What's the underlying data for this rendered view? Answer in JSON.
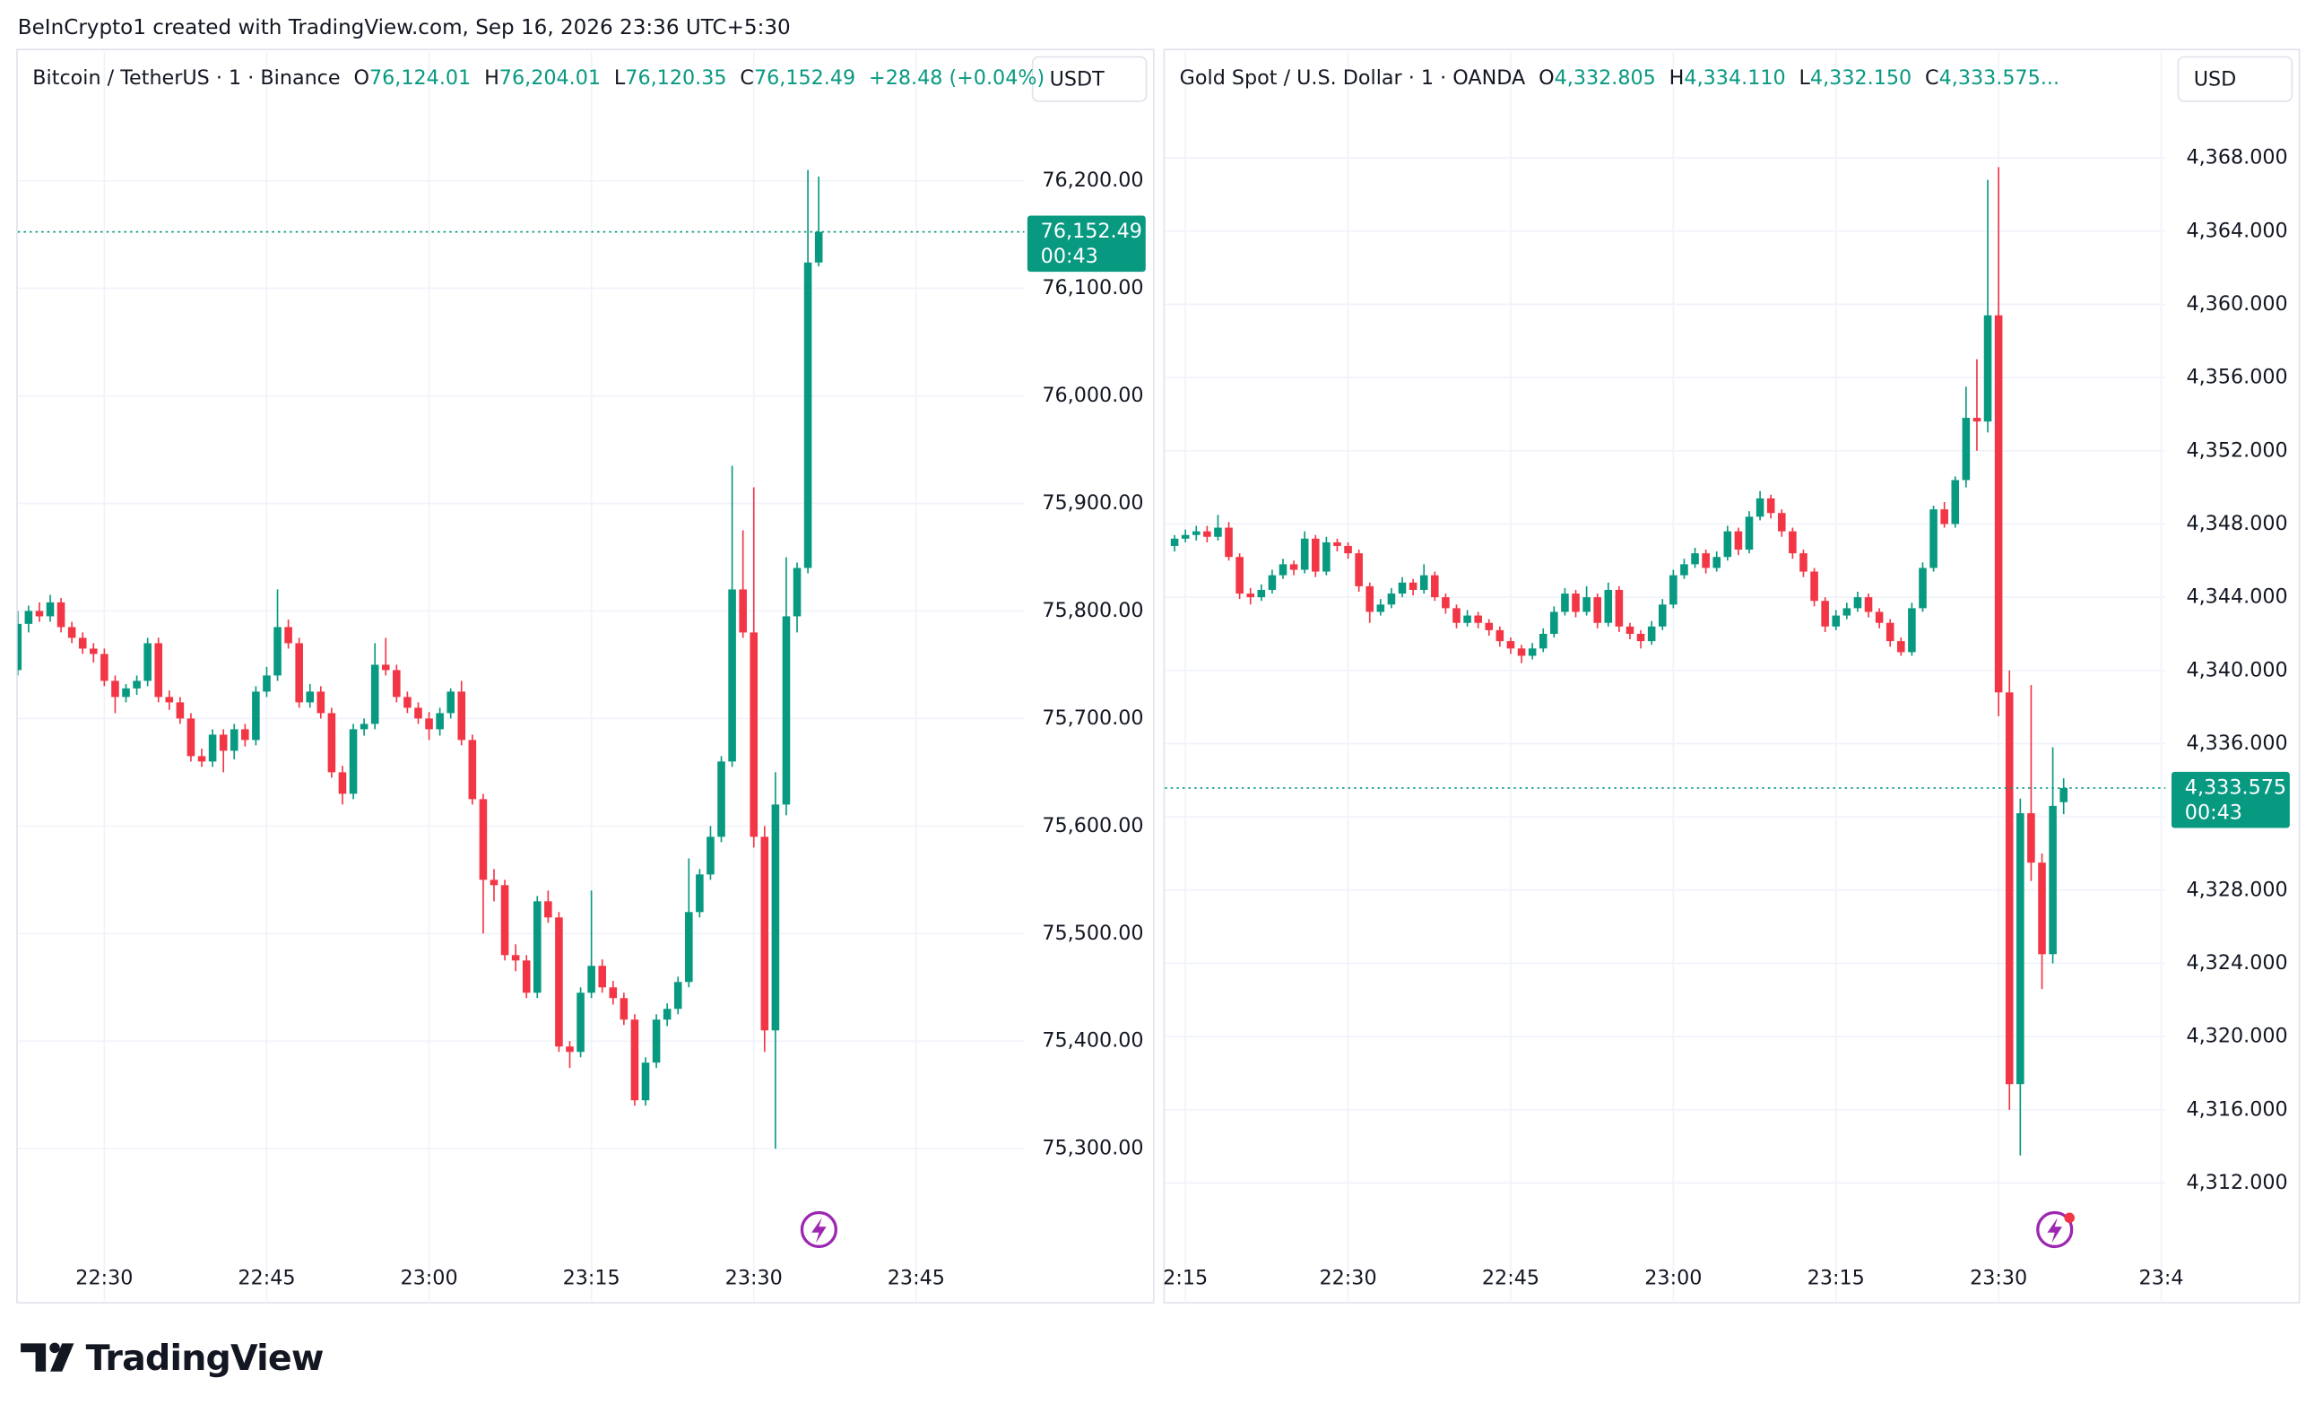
{
  "header": {
    "attribution": "BeInCrypto1 created with TradingView.com, Sep 16, 2026 23:36 UTC+5:30"
  },
  "footer": {
    "logo": "TradingView"
  },
  "chart_data": [
    {
      "type": "candlestick",
      "title": "Bitcoin / TetherUS · 1 · Binance",
      "legend": [
        {
          "key": "O",
          "value": "76,124.01"
        },
        {
          "key": "H",
          "value": "76,204.01"
        },
        {
          "key": "L",
          "value": "76,120.35"
        },
        {
          "key": "C",
          "value": "76,152.49"
        }
      ],
      "change": "+28.48 (+0.04%)",
      "currency": "USDT",
      "up_color": "#089981",
      "down_color": "#f23645",
      "grid": true,
      "xlim": [
        1342,
        1435
      ],
      "xticks": [
        {
          "value": 1350,
          "label": "22:30"
        },
        {
          "value": 1365,
          "label": "22:45"
        },
        {
          "value": 1380,
          "label": "23:00"
        },
        {
          "value": 1395,
          "label": "23:15"
        },
        {
          "value": 1410,
          "label": "23:30"
        },
        {
          "value": 1425,
          "label": "23:45"
        }
      ],
      "ylim": [
        75200,
        76320
      ],
      "yticks": [
        {
          "value": 75300,
          "label": "75,300.00"
        },
        {
          "value": 75400,
          "label": "75,400.00"
        },
        {
          "value": 75500,
          "label": "75,500.00"
        },
        {
          "value": 75600,
          "label": "75,600.00"
        },
        {
          "value": 75700,
          "label": "75,700.00"
        },
        {
          "value": 75800,
          "label": "75,800.00"
        },
        {
          "value": 75900,
          "label": "75,900.00"
        },
        {
          "value": 76000,
          "label": "76,000.00"
        },
        {
          "value": 76100,
          "label": "76,100.00"
        },
        {
          "value": 76200,
          "label": "76,200.00"
        }
      ],
      "last_price": {
        "value": 76152.49,
        "label": "76,152.49"
      },
      "countdown": "00:43",
      "x": [
        1342,
        1343,
        1344,
        1345,
        1346,
        1347,
        1348,
        1349,
        1350,
        1351,
        1352,
        1353,
        1354,
        1355,
        1356,
        1357,
        1358,
        1359,
        1360,
        1361,
        1362,
        1363,
        1364,
        1365,
        1366,
        1367,
        1368,
        1369,
        1370,
        1371,
        1372,
        1373,
        1374,
        1375,
        1376,
        1377,
        1378,
        1379,
        1380,
        1381,
        1382,
        1383,
        1384,
        1385,
        1386,
        1387,
        1388,
        1389,
        1390,
        1391,
        1392,
        1393,
        1394,
        1395,
        1396,
        1397,
        1398,
        1399,
        1400,
        1401,
        1402,
        1403,
        1404,
        1405,
        1406,
        1407,
        1408,
        1409,
        1410,
        1411,
        1412,
        1413,
        1414,
        1415,
        1416
      ],
      "open": [
        75745,
        75788,
        75800,
        75795,
        75808,
        75785,
        75775,
        75765,
        75760,
        75735,
        75720,
        75728,
        75735,
        75770,
        75720,
        75715,
        75700,
        75665,
        75660,
        75685,
        75670,
        75690,
        75680,
        75725,
        75740,
        75785,
        75770,
        75715,
        75725,
        75705,
        75650,
        75630,
        75690,
        75695,
        75750,
        75745,
        75720,
        75710,
        75700,
        75690,
        75705,
        75725,
        75680,
        75625,
        75550,
        75545,
        75480,
        75475,
        75445,
        75530,
        75515,
        75395,
        75390,
        75445,
        75470,
        75450,
        75440,
        75420,
        75345,
        75380,
        75420,
        75430,
        75455,
        75520,
        75555,
        75590,
        75660,
        75820,
        75780,
        75590,
        75410,
        75620,
        75795,
        75840,
        76124.01
      ],
      "high": [
        75800,
        75805,
        75808,
        75815,
        75812,
        75790,
        75780,
        75770,
        75765,
        75740,
        75732,
        75740,
        75775,
        75775,
        75726,
        75720,
        75705,
        75672,
        75690,
        75690,
        75695,
        75695,
        75730,
        75748,
        75820,
        75792,
        75775,
        75732,
        75730,
        75710,
        75656,
        75695,
        75700,
        75770,
        75775,
        75750,
        75725,
        75715,
        75706,
        75710,
        75728,
        75735,
        75685,
        75630,
        75560,
        75550,
        75490,
        75480,
        75535,
        75540,
        75520,
        75400,
        75450,
        75540,
        75476,
        75456,
        75445,
        75425,
        75385,
        75425,
        75435,
        75460,
        75570,
        75560,
        75600,
        75665,
        75935,
        75875,
        75915,
        75600,
        75650,
        75850,
        75845,
        76210,
        76204.01
      ],
      "low": [
        75740,
        75780,
        75790,
        75790,
        75780,
        75770,
        75760,
        75752,
        75730,
        75705,
        75715,
        75722,
        75730,
        75715,
        75708,
        75695,
        75660,
        75655,
        75655,
        75650,
        75662,
        75674,
        75675,
        75720,
        75735,
        75765,
        75710,
        75710,
        75700,
        75645,
        75620,
        75625,
        75684,
        75690,
        75740,
        75715,
        75705,
        75695,
        75680,
        75684,
        75700,
        75675,
        75620,
        75500,
        75530,
        75475,
        75465,
        75440,
        75440,
        75510,
        75390,
        75375,
        75385,
        75440,
        75445,
        75434,
        75415,
        75340,
        75340,
        75375,
        75414,
        75425,
        75450,
        75515,
        75550,
        75585,
        75655,
        75775,
        75580,
        75390,
        75300,
        75610,
        75780,
        75835,
        76120.35
      ],
      "close": [
        75788,
        75800,
        75795,
        75808,
        75785,
        75775,
        75765,
        75760,
        75735,
        75720,
        75728,
        75735,
        75770,
        75720,
        75715,
        75700,
        75665,
        75660,
        75685,
        75670,
        75690,
        75680,
        75725,
        75740,
        75785,
        75770,
        75715,
        75725,
        75705,
        75650,
        75630,
        75690,
        75695,
        75750,
        75745,
        75720,
        75710,
        75700,
        75690,
        75705,
        75725,
        75680,
        75625,
        75550,
        75545,
        75480,
        75475,
        75445,
        75530,
        75515,
        75395,
        75390,
        75445,
        75470,
        75450,
        75440,
        75420,
        75345,
        75380,
        75420,
        75430,
        75455,
        75520,
        75555,
        75590,
        75660,
        75820,
        75780,
        75590,
        75410,
        75620,
        75795,
        75840,
        76124,
        76152.49
      ]
    },
    {
      "type": "candlestick",
      "title": "Gold Spot / U.S. Dollar · 1 · OANDA",
      "legend": [
        {
          "key": "O",
          "value": "4,332.805"
        },
        {
          "key": "H",
          "value": "4,334.110"
        },
        {
          "key": "L",
          "value": "4,332.150"
        },
        {
          "key": "C",
          "value": "4,333.575..."
        }
      ],
      "currency": "USD",
      "up_color": "#089981",
      "down_color": "#f23645",
      "grid": true,
      "xlim": [
        1333.1,
        1425.4
      ],
      "xticks": [
        {
          "value": 1335,
          "label": "2:15"
        },
        {
          "value": 1350,
          "label": "22:30"
        },
        {
          "value": 1365,
          "label": "22:45"
        },
        {
          "value": 1380,
          "label": "23:00"
        },
        {
          "value": 1395,
          "label": "23:15"
        },
        {
          "value": 1410,
          "label": "23:30"
        },
        {
          "value": 1425,
          "label": "23:4"
        }
      ],
      "ylim": [
        4308,
        4373.8
      ],
      "yticks": [
        {
          "value": 4312,
          "label": "4,312.000"
        },
        {
          "value": 4316,
          "label": "4,316.000"
        },
        {
          "value": 4320,
          "label": "4,320.000"
        },
        {
          "value": 4324,
          "label": "4,324.000"
        },
        {
          "value": 4328,
          "label": "4,328.000"
        },
        {
          "value": 4332,
          "label": "4,332.000"
        },
        {
          "value": 4336,
          "label": "4,336.000"
        },
        {
          "value": 4340,
          "label": "4,340.000"
        },
        {
          "value": 4344,
          "label": "4,344.000"
        },
        {
          "value": 4348,
          "label": "4,348.000"
        },
        {
          "value": 4352,
          "label": "4,352.000"
        },
        {
          "value": 4356,
          "label": "4,356.000"
        },
        {
          "value": 4360,
          "label": "4,360.000"
        },
        {
          "value": 4364,
          "label": "4,364.000"
        },
        {
          "value": 4368,
          "label": "4,368.000"
        }
      ],
      "last_price": {
        "value": 4333.575,
        "label": "4,333.575"
      },
      "countdown": "00:43",
      "x": [
        1334,
        1335,
        1336,
        1337,
        1338,
        1339,
        1340,
        1341,
        1342,
        1343,
        1344,
        1345,
        1346,
        1347,
        1348,
        1349,
        1350,
        1351,
        1352,
        1353,
        1354,
        1355,
        1356,
        1357,
        1358,
        1359,
        1360,
        1361,
        1362,
        1363,
        1364,
        1365,
        1366,
        1367,
        1368,
        1369,
        1370,
        1371,
        1372,
        1373,
        1374,
        1375,
        1376,
        1377,
        1378,
        1379,
        1380,
        1381,
        1382,
        1383,
        1384,
        1385,
        1386,
        1387,
        1388,
        1389,
        1390,
        1391,
        1392,
        1393,
        1394,
        1395,
        1396,
        1397,
        1398,
        1399,
        1400,
        1401,
        1402,
        1403,
        1404,
        1405,
        1406,
        1407,
        1408,
        1409,
        1410,
        1411,
        1412,
        1413,
        1414,
        1415,
        1416
      ],
      "open": [
        4346.8,
        4347.2,
        4347.4,
        4347.6,
        4347.3,
        4347.8,
        4346.2,
        4344.2,
        4344.0,
        4344.4,
        4345.2,
        4345.8,
        4345.5,
        4347.2,
        4345.4,
        4347.0,
        4346.8,
        4346.4,
        4344.6,
        4343.2,
        4343.6,
        4344.2,
        4344.8,
        4344.4,
        4345.2,
        4344.0,
        4343.4,
        4342.6,
        4343.0,
        4342.6,
        4342.2,
        4341.6,
        4341.2,
        4340.8,
        4341.2,
        4342.0,
        4343.2,
        4344.2,
        4343.2,
        4344.0,
        4342.6,
        4344.4,
        4342.4,
        4342.0,
        4341.6,
        4342.4,
        4343.6,
        4345.2,
        4345.8,
        4346.4,
        4345.6,
        4346.2,
        4347.6,
        4346.6,
        4348.4,
        4349.4,
        4348.6,
        4347.6,
        4346.4,
        4345.4,
        4343.8,
        4342.4,
        4343.0,
        4343.4,
        4344.0,
        4343.2,
        4342.6,
        4341.6,
        4341.0,
        4343.4,
        4345.6,
        4348.8,
        4348.0,
        4350.4,
        4353.8,
        4353.6,
        4359.4,
        4338.8,
        4317.4,
        4332.2,
        4329.5,
        4324.5,
        4332.805
      ],
      "high": [
        4347.4,
        4347.7,
        4347.9,
        4347.9,
        4348.5,
        4348.1,
        4346.4,
        4344.5,
        4344.7,
        4345.5,
        4346.1,
        4346.0,
        4347.6,
        4347.4,
        4347.3,
        4347.2,
        4347.0,
        4346.6,
        4344.8,
        4343.9,
        4344.5,
        4345.1,
        4345.0,
        4345.8,
        4345.4,
        4344.2,
        4343.6,
        4343.3,
        4343.2,
        4342.8,
        4342.4,
        4341.8,
        4341.4,
        4341.5,
        4342.3,
        4343.5,
        4344.5,
        4344.4,
        4344.6,
        4344.2,
        4344.8,
        4344.6,
        4342.6,
        4342.2,
        4342.7,
        4343.9,
        4345.5,
        4346.1,
        4346.7,
        4346.6,
        4346.5,
        4347.9,
        4347.8,
        4348.7,
        4349.8,
        4349.6,
        4348.8,
        4347.8,
        4346.6,
        4345.6,
        4344.0,
        4343.3,
        4343.7,
        4344.3,
        4344.2,
        4343.4,
        4342.8,
        4341.8,
        4343.7,
        4345.9,
        4349.0,
        4349.2,
        4350.6,
        4355.5,
        4357.0,
        4366.8,
        4367.5,
        4340.0,
        4333.0,
        4339.2,
        4330.0,
        4335.8,
        4334.11
      ],
      "low": [
        4346.5,
        4347.0,
        4347.1,
        4347.0,
        4347.1,
        4346.0,
        4343.9,
        4343.6,
        4343.8,
        4344.2,
        4345.0,
        4345.2,
        4345.3,
        4345.1,
        4345.2,
        4346.5,
        4346.1,
        4344.3,
        4342.6,
        4343.0,
        4343.4,
        4344.0,
        4344.1,
        4344.2,
        4343.8,
        4343.1,
        4342.3,
        4342.4,
        4342.3,
        4341.9,
        4341.3,
        4340.9,
        4340.4,
        4340.6,
        4341.0,
        4341.8,
        4343.0,
        4342.9,
        4343.0,
        4342.3,
        4342.4,
        4342.1,
        4341.7,
        4341.2,
        4341.4,
        4342.2,
        4343.4,
        4345.0,
        4345.6,
        4345.3,
        4345.4,
        4346.0,
        4346.3,
        4346.4,
        4348.2,
        4348.3,
        4347.3,
        4346.1,
        4345.1,
        4343.5,
        4342.1,
        4342.2,
        4342.8,
        4343.2,
        4342.9,
        4342.3,
        4341.3,
        4340.8,
        4340.8,
        4343.2,
        4345.4,
        4347.8,
        4347.8,
        4350.0,
        4352.0,
        4353.0,
        4337.5,
        4316.0,
        4313.5,
        4328.5,
        4322.6,
        4324.0,
        4332.15
      ],
      "close": [
        4347.2,
        4347.4,
        4347.6,
        4347.3,
        4347.8,
        4346.2,
        4344.2,
        4344.0,
        4344.4,
        4345.2,
        4345.8,
        4345.5,
        4347.2,
        4345.4,
        4347.0,
        4346.8,
        4346.4,
        4344.6,
        4343.2,
        4343.6,
        4344.2,
        4344.8,
        4344.4,
        4345.2,
        4344.0,
        4343.4,
        4342.6,
        4343.0,
        4342.6,
        4342.2,
        4341.6,
        4341.2,
        4340.8,
        4341.2,
        4342.0,
        4343.2,
        4344.2,
        4343.2,
        4344.0,
        4342.6,
        4344.4,
        4342.4,
        4342.0,
        4341.6,
        4342.4,
        4343.6,
        4345.2,
        4345.8,
        4346.4,
        4345.6,
        4346.2,
        4347.6,
        4346.6,
        4348.4,
        4349.4,
        4348.6,
        4347.6,
        4346.4,
        4345.4,
        4343.8,
        4342.4,
        4343.0,
        4343.4,
        4344.0,
        4343.2,
        4342.6,
        4341.6,
        4341.0,
        4343.4,
        4345.6,
        4348.8,
        4348.0,
        4350.4,
        4353.8,
        4353.6,
        4359.4,
        4338.8,
        4317.4,
        4332.2,
        4329.5,
        4324.5,
        4332.6,
        4333.575
      ]
    }
  ]
}
